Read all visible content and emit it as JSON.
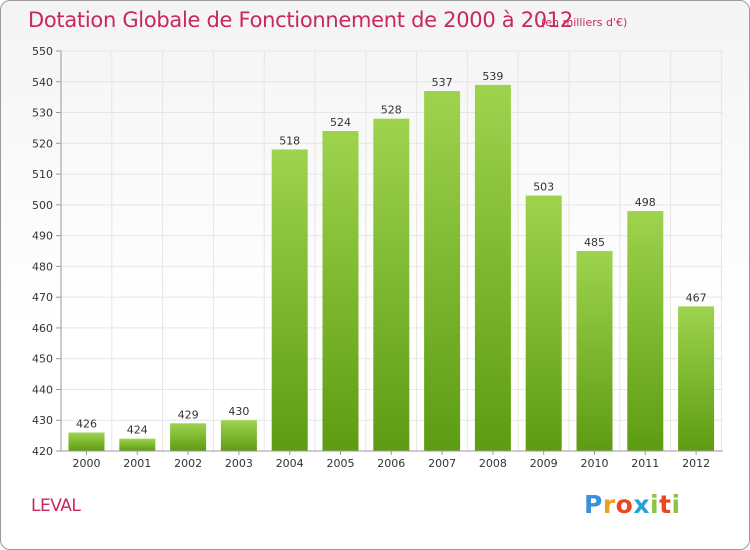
{
  "header": {
    "title": "Dotation Globale de Fonctionnement de 2000 à 2012",
    "subtitle": "(en milliers d'€)"
  },
  "footer": {
    "commune": "LEVAL",
    "logo_text": "Proxiti"
  },
  "colors": {
    "accent": "#c8285a",
    "bar_top": "#9ed34e",
    "bar_bottom": "#5d9c12",
    "grid": "#e6e6e6"
  },
  "chart_data": {
    "type": "bar",
    "title": "Dotation Globale de Fonctionnement de 2000 à 2012",
    "subtitle": "(en milliers d'€)",
    "xlabel": "",
    "ylabel": "",
    "categories": [
      "2000",
      "2001",
      "2002",
      "2003",
      "2004",
      "2005",
      "2006",
      "2007",
      "2008",
      "2009",
      "2010",
      "2011",
      "2012"
    ],
    "values": [
      426,
      424,
      429,
      430,
      518,
      524,
      528,
      537,
      539,
      503,
      485,
      498,
      467
    ],
    "ylim": [
      420,
      550
    ],
    "yticks": [
      420,
      430,
      440,
      450,
      460,
      470,
      480,
      490,
      500,
      510,
      520,
      530,
      540,
      550
    ],
    "grid": true,
    "legend": "none"
  }
}
